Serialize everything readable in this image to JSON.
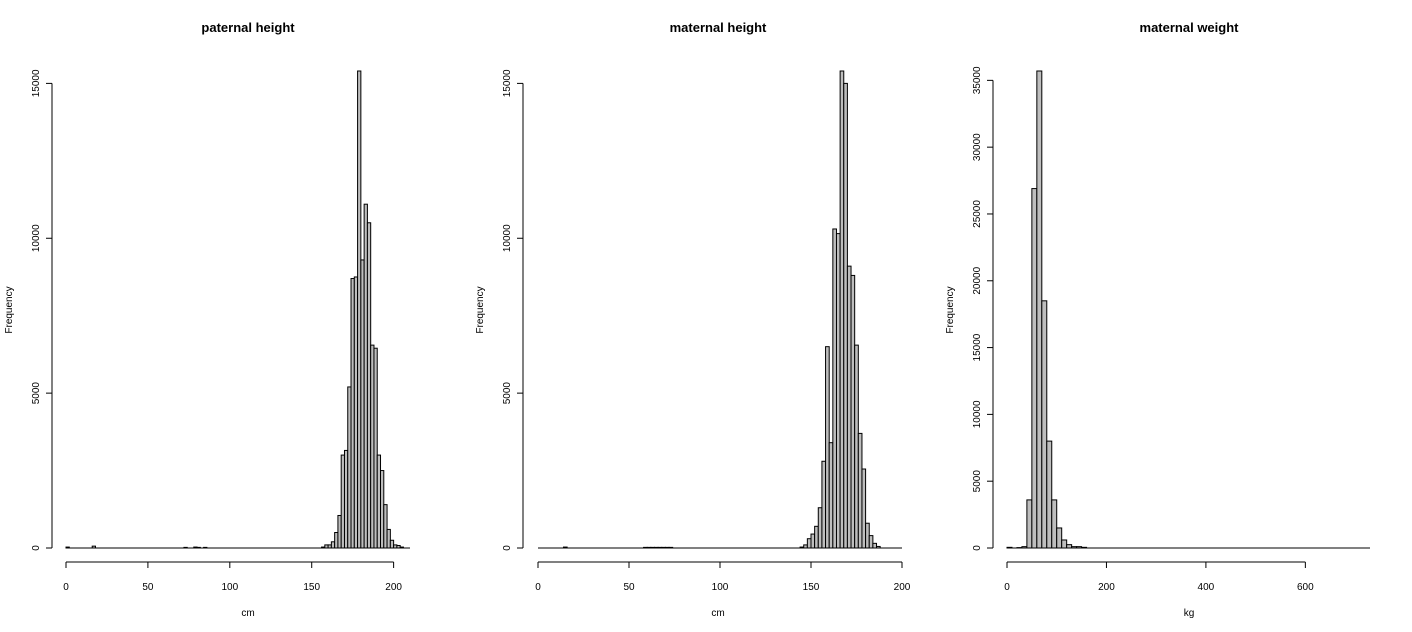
{
  "chart_data": [
    {
      "type": "bar",
      "title": "paternal height",
      "xlabel": "cm",
      "ylabel": "Frequency",
      "xlim": [
        0,
        210
      ],
      "ylim": [
        0,
        15400
      ],
      "grid": false,
      "bin_width": 2,
      "xticks": [
        0,
        50,
        100,
        150,
        200
      ],
      "xtick_labels": [
        "0",
        "50",
        "100",
        "150",
        "200"
      ],
      "yticks": [
        0,
        5000,
        10000,
        15000
      ],
      "ytick_labels": [
        "0",
        "5000",
        "10000",
        "15000"
      ],
      "bins": [
        {
          "x0": 0,
          "x1": 2,
          "count": 30
        },
        {
          "x0": 16,
          "x1": 18,
          "count": 60
        },
        {
          "x0": 72,
          "x1": 74,
          "count": 20
        },
        {
          "x0": 78,
          "x1": 80,
          "count": 30
        },
        {
          "x0": 80,
          "x1": 82,
          "count": 20
        },
        {
          "x0": 84,
          "x1": 86,
          "count": 20
        },
        {
          "x0": 156,
          "x1": 158,
          "count": 30
        },
        {
          "x0": 158,
          "x1": 160,
          "count": 100
        },
        {
          "x0": 160,
          "x1": 162,
          "count": 100
        },
        {
          "x0": 162,
          "x1": 164,
          "count": 200
        },
        {
          "x0": 164,
          "x1": 166,
          "count": 500
        },
        {
          "x0": 166,
          "x1": 168,
          "count": 1050
        },
        {
          "x0": 168,
          "x1": 170,
          "count": 3000
        },
        {
          "x0": 170,
          "x1": 172,
          "count": 3150
        },
        {
          "x0": 172,
          "x1": 174,
          "count": 5200
        },
        {
          "x0": 174,
          "x1": 176,
          "count": 8700
        },
        {
          "x0": 176,
          "x1": 178,
          "count": 8750
        },
        {
          "x0": 178,
          "x1": 180,
          "count": 15400
        },
        {
          "x0": 180,
          "x1": 182,
          "count": 9300
        },
        {
          "x0": 182,
          "x1": 184,
          "count": 11100
        },
        {
          "x0": 184,
          "x1": 186,
          "count": 10500
        },
        {
          "x0": 186,
          "x1": 188,
          "count": 6550
        },
        {
          "x0": 188,
          "x1": 190,
          "count": 6450
        },
        {
          "x0": 190,
          "x1": 192,
          "count": 3000
        },
        {
          "x0": 192,
          "x1": 194,
          "count": 2500
        },
        {
          "x0": 194,
          "x1": 196,
          "count": 1400
        },
        {
          "x0": 196,
          "x1": 198,
          "count": 600
        },
        {
          "x0": 198,
          "x1": 200,
          "count": 250
        },
        {
          "x0": 200,
          "x1": 202,
          "count": 100
        },
        {
          "x0": 202,
          "x1": 204,
          "count": 80
        },
        {
          "x0": 204,
          "x1": 206,
          "count": 30
        }
      ]
    },
    {
      "type": "bar",
      "title": "maternal height",
      "xlabel": "cm",
      "ylabel": "Frequency",
      "xlim": [
        0,
        200
      ],
      "ylim": [
        0,
        15400
      ],
      "grid": false,
      "bin_width": 2,
      "xticks": [
        0,
        50,
        100,
        150,
        200
      ],
      "xtick_labels": [
        "0",
        "50",
        "100",
        "150",
        "200"
      ],
      "yticks": [
        0,
        5000,
        10000,
        15000
      ],
      "ytick_labels": [
        "0",
        "5000",
        "10000",
        "15000"
      ],
      "bins": [
        {
          "x0": 14,
          "x1": 16,
          "count": 30
        },
        {
          "x0": 58,
          "x1": 60,
          "count": 20
        },
        {
          "x0": 60,
          "x1": 62,
          "count": 20
        },
        {
          "x0": 62,
          "x1": 64,
          "count": 20
        },
        {
          "x0": 64,
          "x1": 66,
          "count": 20
        },
        {
          "x0": 66,
          "x1": 68,
          "count": 20
        },
        {
          "x0": 68,
          "x1": 70,
          "count": 20
        },
        {
          "x0": 70,
          "x1": 72,
          "count": 20
        },
        {
          "x0": 72,
          "x1": 74,
          "count": 20
        },
        {
          "x0": 144,
          "x1": 146,
          "count": 30
        },
        {
          "x0": 146,
          "x1": 148,
          "count": 100
        },
        {
          "x0": 148,
          "x1": 150,
          "count": 300
        },
        {
          "x0": 150,
          "x1": 152,
          "count": 450
        },
        {
          "x0": 152,
          "x1": 154,
          "count": 700
        },
        {
          "x0": 154,
          "x1": 156,
          "count": 1300
        },
        {
          "x0": 156,
          "x1": 158,
          "count": 2800
        },
        {
          "x0": 158,
          "x1": 160,
          "count": 6500
        },
        {
          "x0": 160,
          "x1": 162,
          "count": 3400
        },
        {
          "x0": 162,
          "x1": 164,
          "count": 10300
        },
        {
          "x0": 164,
          "x1": 166,
          "count": 10150
        },
        {
          "x0": 166,
          "x1": 168,
          "count": 15400
        },
        {
          "x0": 168,
          "x1": 170,
          "count": 15000
        },
        {
          "x0": 170,
          "x1": 172,
          "count": 9100
        },
        {
          "x0": 172,
          "x1": 174,
          "count": 8800
        },
        {
          "x0": 174,
          "x1": 176,
          "count": 6550
        },
        {
          "x0": 176,
          "x1": 178,
          "count": 3700
        },
        {
          "x0": 178,
          "x1": 180,
          "count": 2550
        },
        {
          "x0": 180,
          "x1": 182,
          "count": 800
        },
        {
          "x0": 182,
          "x1": 184,
          "count": 400
        },
        {
          "x0": 184,
          "x1": 186,
          "count": 150
        },
        {
          "x0": 186,
          "x1": 188,
          "count": 50
        }
      ]
    },
    {
      "type": "bar",
      "title": "maternal weight",
      "xlabel": "kg",
      "ylabel": "Frequency",
      "xlim": [
        0,
        730
      ],
      "ylim": [
        0,
        35700
      ],
      "grid": false,
      "bin_width": 10,
      "xticks": [
        0,
        200,
        400,
        600
      ],
      "xtick_labels": [
        "0",
        "200",
        "400",
        "600"
      ],
      "yticks": [
        0,
        5000,
        10000,
        15000,
        20000,
        25000,
        30000,
        35000
      ],
      "ytick_labels": [
        "0",
        "5000",
        "10000",
        "15000",
        "20000",
        "25000",
        "30000",
        "35000"
      ],
      "bins": [
        {
          "x0": 0,
          "x1": 10,
          "count": 50
        },
        {
          "x0": 20,
          "x1": 30,
          "count": 30
        },
        {
          "x0": 30,
          "x1": 40,
          "count": 100
        },
        {
          "x0": 40,
          "x1": 50,
          "count": 3600
        },
        {
          "x0": 50,
          "x1": 60,
          "count": 26900
        },
        {
          "x0": 60,
          "x1": 70,
          "count": 35700
        },
        {
          "x0": 70,
          "x1": 80,
          "count": 18500
        },
        {
          "x0": 80,
          "x1": 90,
          "count": 8000
        },
        {
          "x0": 90,
          "x1": 100,
          "count": 3600
        },
        {
          "x0": 100,
          "x1": 110,
          "count": 1500
        },
        {
          "x0": 110,
          "x1": 120,
          "count": 600
        },
        {
          "x0": 120,
          "x1": 130,
          "count": 250
        },
        {
          "x0": 130,
          "x1": 140,
          "count": 100
        },
        {
          "x0": 140,
          "x1": 150,
          "count": 100
        },
        {
          "x0": 150,
          "x1": 160,
          "count": 50
        }
      ]
    }
  ]
}
